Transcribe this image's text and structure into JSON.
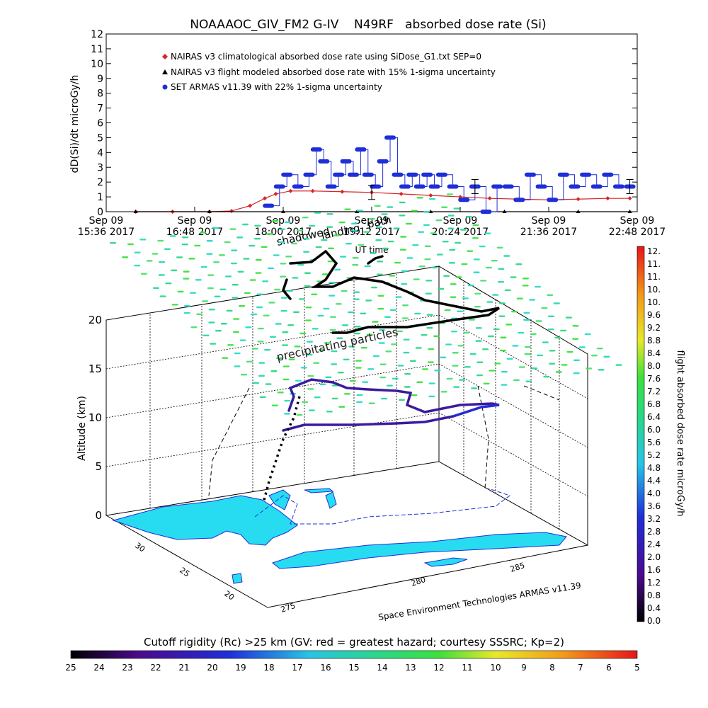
{
  "chart_data": [
    {
      "type": "line",
      "title": "NOAAAOC_GIV_FM2 G-IV    N49RF   absorbed dose rate (Si)",
      "ylabel": "dD(Si)/dt microGy/h",
      "xlabel": "UT time",
      "ylim": [
        0,
        12
      ],
      "yticks": [
        "0",
        "1",
        "2",
        "3",
        "4",
        "5",
        "6",
        "7",
        "8",
        "9",
        "10",
        "11",
        "12"
      ],
      "xticks": [
        {
          "date": "Sep 09",
          "time": "15:36 2017"
        },
        {
          "date": "Sep 09",
          "time": "16:48 2017"
        },
        {
          "date": "Sep 09",
          "time": "18:00 2017"
        },
        {
          "date": "Sep 09",
          "time": "19:12 2017"
        },
        {
          "date": "Sep 09",
          "time": "20:24 2017"
        },
        {
          "date": "Sep 09",
          "time": "21:36 2017"
        },
        {
          "date": "Sep 09",
          "time": "22:48 2017"
        }
      ],
      "xrange_hours": [
        15.6,
        22.8
      ],
      "annotations": [
        "shadowed",
        "path",
        "landing"
      ],
      "legend_position": "top-left",
      "series": [
        {
          "name": "NAIRAS v3 climatological absorbed dose rate using SiDose_G1.txt SEP=0",
          "color": "#d62728",
          "marker": "diamond",
          "x": [
            16.0,
            16.5,
            17.0,
            17.3,
            17.55,
            17.75,
            17.9,
            18.1,
            18.4,
            18.8,
            19.2,
            19.6,
            20.0,
            20.4,
            20.8,
            21.2,
            21.6,
            22.0,
            22.4,
            22.7
          ],
          "y": [
            0.0,
            0.0,
            0.0,
            0.05,
            0.4,
            0.9,
            1.2,
            1.4,
            1.4,
            1.35,
            1.3,
            1.2,
            1.1,
            1.0,
            0.9,
            0.85,
            0.8,
            0.85,
            0.9,
            0.9
          ]
        },
        {
          "name": "NAIRAS v3 flight modeled absorbed dose rate with 15% 1-sigma uncertainty",
          "color": "#000000",
          "marker": "triangle",
          "x": [
            16.0,
            17.0,
            18.0,
            19.0,
            20.0,
            21.0,
            22.0,
            22.7
          ],
          "y": [
            0,
            0,
            0,
            0,
            0,
            0,
            0,
            0
          ]
        },
        {
          "name": "SET ARMAS v11.39 with 22% 1-sigma uncertainty",
          "color": "#1f2fd8",
          "marker": "circle",
          "x": [
            17.8,
            17.95,
            18.05,
            18.2,
            18.35,
            18.45,
            18.55,
            18.65,
            18.75,
            18.85,
            18.95,
            19.05,
            19.15,
            19.25,
            19.35,
            19.45,
            19.55,
            19.65,
            19.75,
            19.85,
            19.95,
            20.05,
            20.15,
            20.3,
            20.45,
            20.6,
            20.75,
            20.9,
            21.05,
            21.2,
            21.35,
            21.5,
            21.65,
            21.8,
            21.95,
            22.1,
            22.25,
            22.4,
            22.55,
            22.7
          ],
          "y": [
            0.4,
            1.7,
            2.5,
            1.7,
            2.5,
            4.2,
            3.4,
            1.7,
            2.5,
            3.4,
            2.5,
            4.2,
            2.5,
            1.7,
            3.4,
            5.0,
            2.5,
            1.7,
            2.5,
            1.7,
            2.5,
            1.7,
            2.5,
            1.7,
            0.8,
            1.7,
            0.0,
            1.7,
            1.7,
            0.8,
            2.5,
            1.7,
            0.8,
            2.5,
            1.7,
            2.5,
            1.7,
            2.5,
            1.7,
            1.7
          ]
        }
      ],
      "error_bars": {
        "x": [
          19.2,
          20.6,
          22.7
        ],
        "y": [
          1.3,
          1.7,
          1.7
        ]
      }
    },
    {
      "type": "scatter",
      "title": "",
      "zlabel": "Altitude (km)",
      "zticks": [
        "0",
        "5",
        "10",
        "15",
        "20"
      ],
      "lat_ticks": [
        "30",
        "25",
        "20"
      ],
      "lon_ticks": [
        "275",
        "280",
        "285"
      ],
      "annotations": [
        "precipitating particles"
      ],
      "credit": "Space Environment Technologies ARMAS v11.39",
      "flight_track_km": 12.5,
      "particle_layer_km": 20
    }
  ],
  "colorbar_right": {
    "label": "flight absorbed dose rate microGy/h",
    "ticks": [
      "12.",
      "11.",
      "11.",
      "10.",
      "10.",
      "9.6",
      "9.2",
      "8.8",
      "8.4",
      "8.0",
      "7.6",
      "7.2",
      "6.8",
      "6.4",
      "6.0",
      "5.6",
      "5.2",
      "4.8",
      "4.4",
      "4.0",
      "3.6",
      "3.2",
      "2.8",
      "2.4",
      "2.0",
      "1.6",
      "1.2",
      "0.8",
      "0.4",
      "0.0"
    ]
  },
  "colorbar_bottom": {
    "title": "Cutoff rigidity (Rc) >25 km (GV: red = greatest hazard; courtesy SSSRC; Kp=2)",
    "ticks": [
      "25",
      "24",
      "23",
      "22",
      "21",
      "20",
      "19",
      "18",
      "17",
      "16",
      "15",
      "14",
      "13",
      "12",
      "11",
      "10",
      "9",
      "8",
      "7",
      "6",
      "5"
    ]
  }
}
